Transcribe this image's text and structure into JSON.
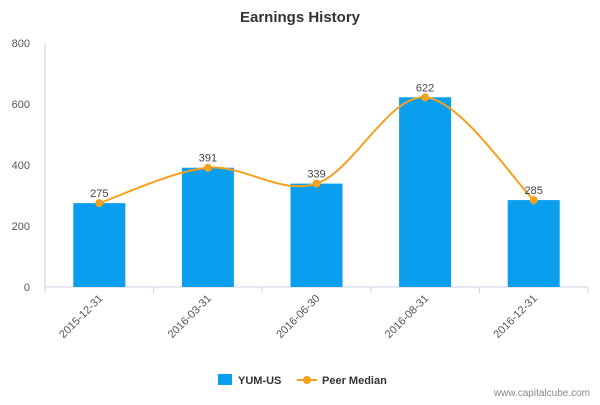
{
  "chart_data": {
    "type": "bar",
    "title": "Earnings History",
    "categories": [
      "2015-12-31",
      "2016-03-31",
      "2016-06-30",
      "2016-08-31",
      "2016-12-31"
    ],
    "series": [
      {
        "name": "YUM-US",
        "type": "bar",
        "color": "#0a9fee",
        "values": [
          275,
          391,
          339,
          622,
          285
        ]
      },
      {
        "name": "Peer Median",
        "type": "line",
        "color": "#f5a11e",
        "values": [
          275,
          391,
          339,
          622,
          285
        ]
      }
    ],
    "data_labels": [
      "275",
      "391",
      "339",
      "622",
      "285"
    ],
    "ylim": [
      0,
      800
    ],
    "yticks": [
      0,
      200,
      400,
      600,
      800
    ],
    "grid": false,
    "legend_position": "bottom-center",
    "watermark": "www.capitalcube.com"
  }
}
